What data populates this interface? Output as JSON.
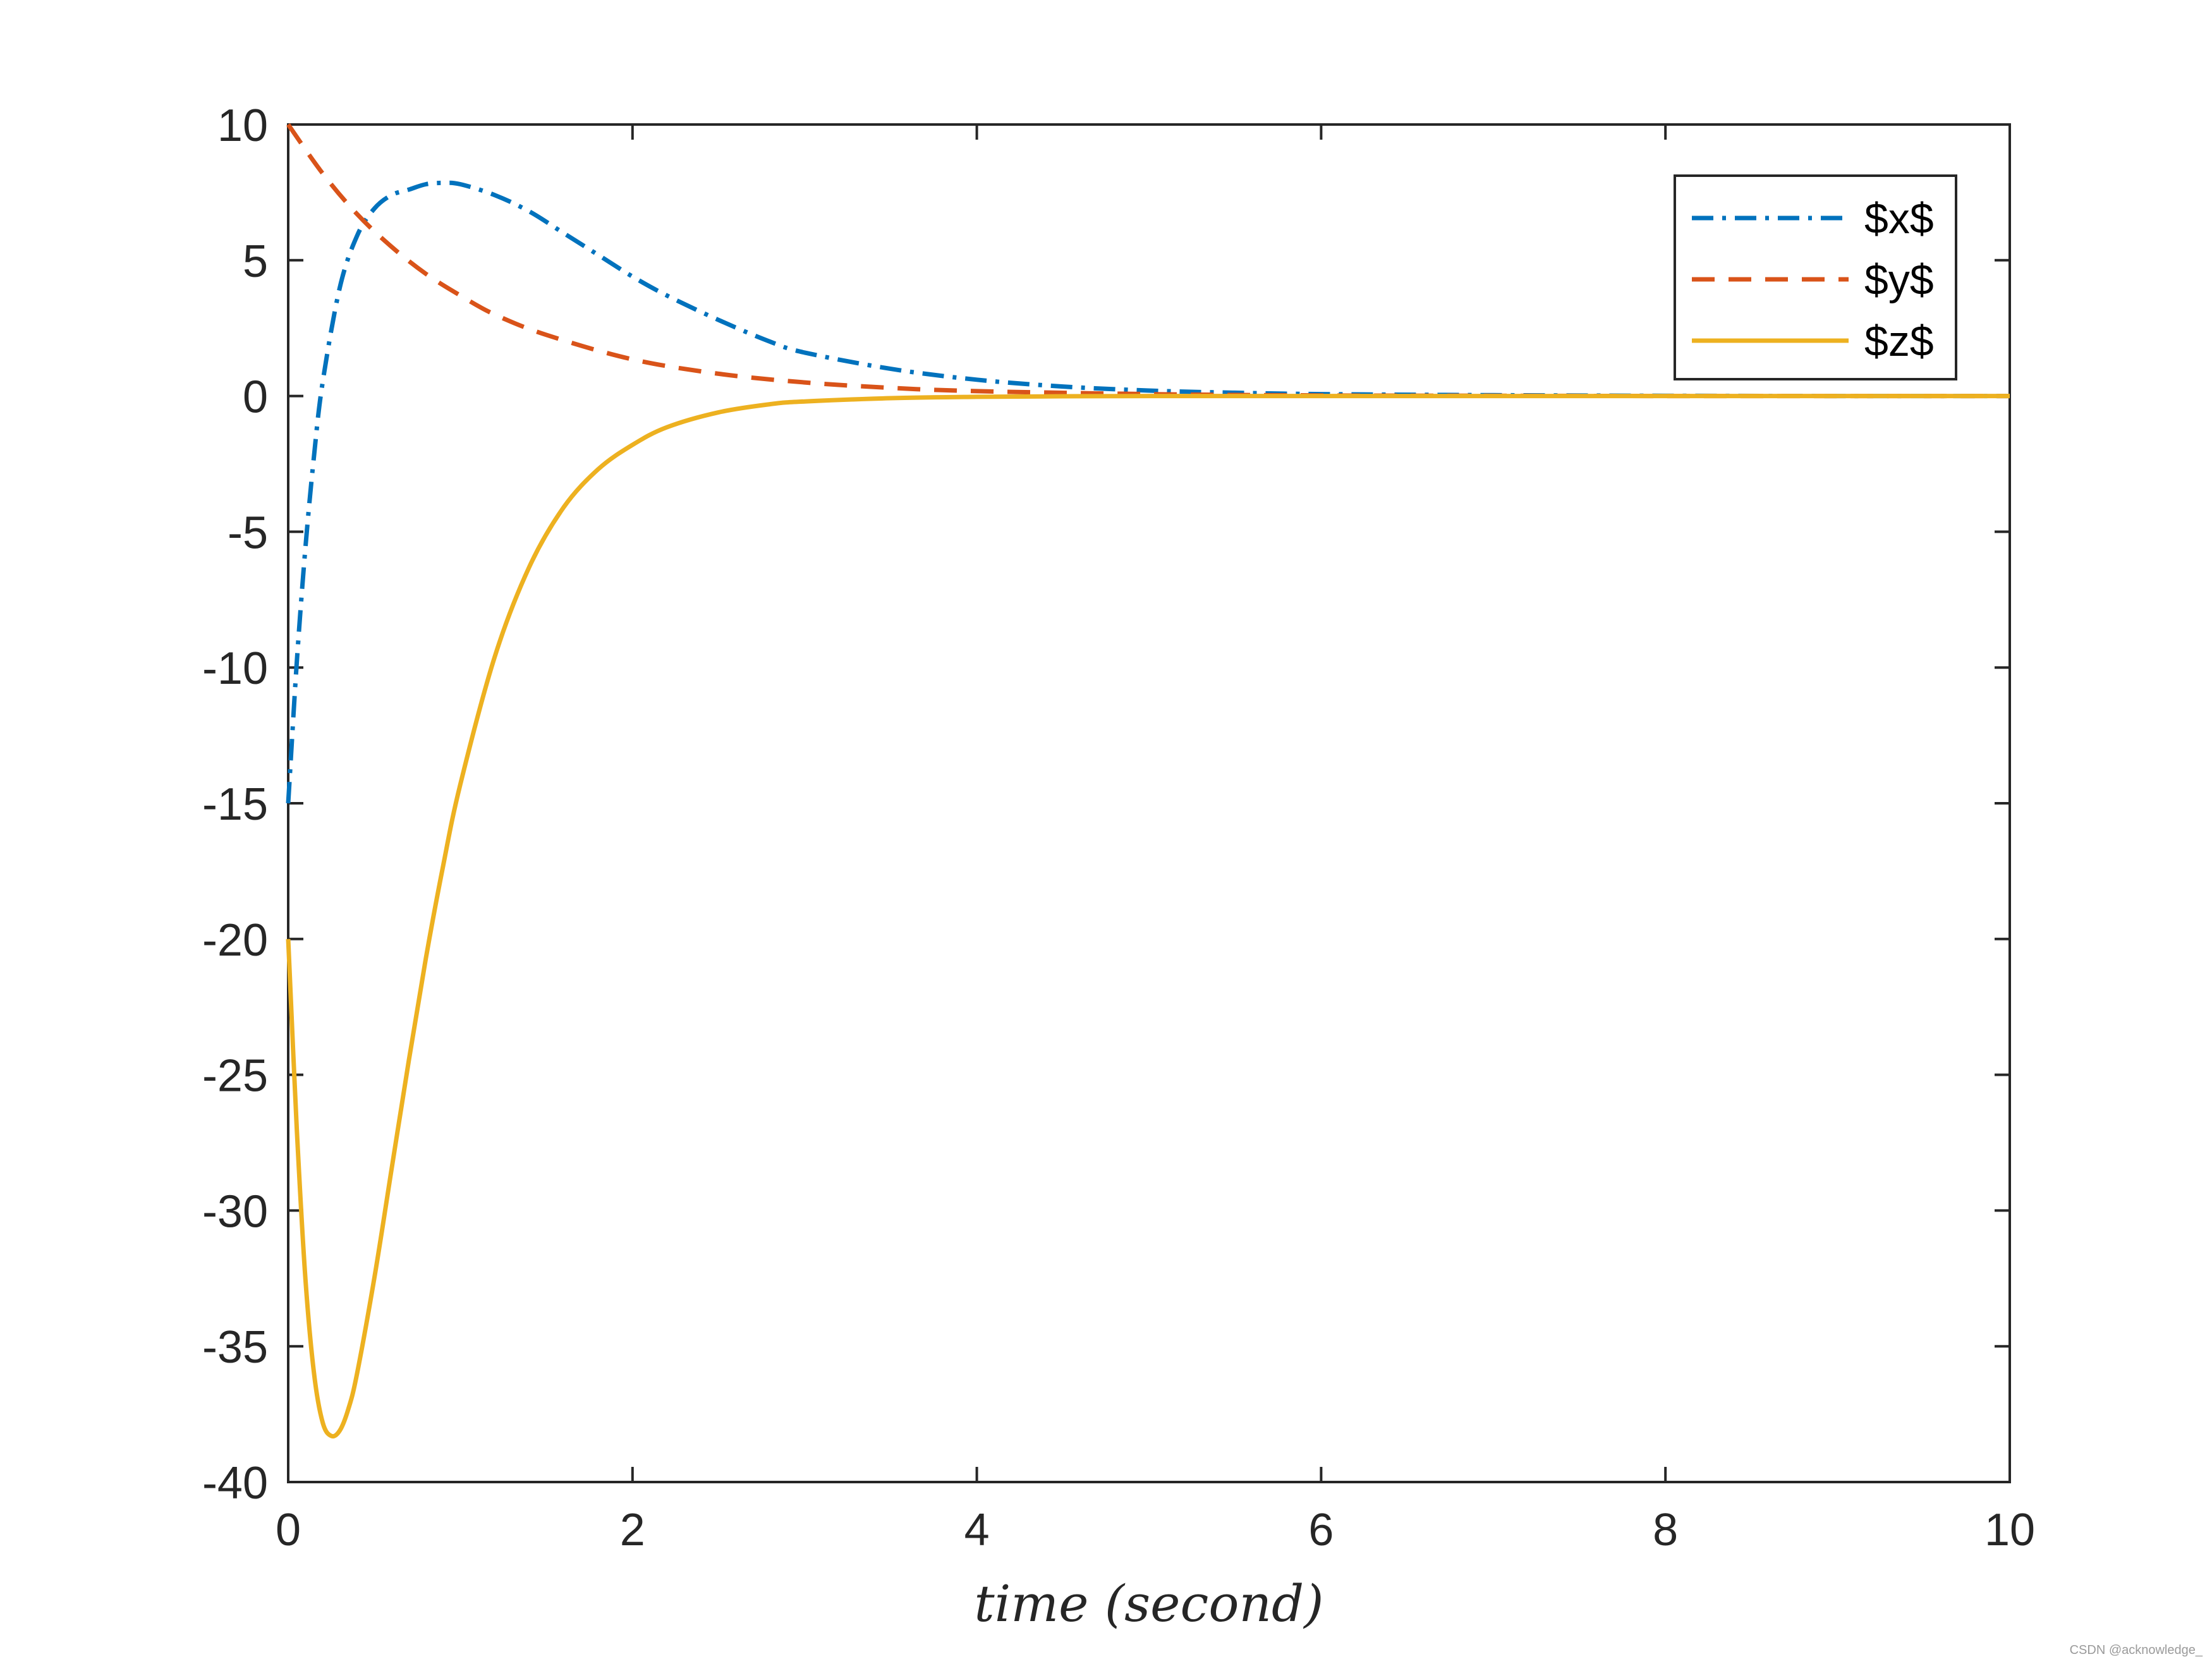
{
  "chart_data": {
    "type": "line",
    "title": "",
    "xlabel": "time (second)",
    "ylabel": "",
    "xlim": [
      0,
      10
    ],
    "ylim": [
      -40,
      10
    ],
    "xticks": [
      0,
      2,
      4,
      6,
      8,
      10
    ],
    "yticks": [
      10,
      5,
      0,
      -5,
      -10,
      -15,
      -20,
      -25,
      -30,
      -35,
      -40
    ],
    "xtick_labels": [
      "0",
      "2",
      "4",
      "6",
      "8",
      "10"
    ],
    "ytick_labels": [
      "10",
      "5",
      "0",
      "-5",
      "-10",
      "-15",
      "-20",
      "-25",
      "-30",
      "-35",
      "-40"
    ],
    "grid": false,
    "legend_position": "top-right",
    "series": [
      {
        "name": "$x$",
        "color": "#0072bd",
        "style": "dash-dot",
        "x": [
          0,
          0.05,
          0.1,
          0.15,
          0.2,
          0.3,
          0.4,
          0.5,
          0.6,
          0.7,
          0.8,
          0.9,
          1.0,
          1.2,
          1.4,
          1.6,
          1.8,
          2.0,
          2.2,
          2.5,
          2.8,
          3.0,
          3.5,
          4.0,
          4.5,
          5.0,
          5.5,
          6.0,
          7.0,
          8.0,
          9.0,
          10.0
        ],
        "y": [
          -15,
          -9.8,
          -5.6,
          -2.2,
          0.5,
          4.0,
          5.9,
          6.9,
          7.4,
          7.6,
          7.8,
          7.85,
          7.8,
          7.4,
          6.8,
          6.0,
          5.2,
          4.4,
          3.7,
          2.8,
          2.0,
          1.6,
          1.0,
          0.6,
          0.35,
          0.2,
          0.12,
          0.07,
          0.03,
          0.01,
          0.0,
          0.0
        ]
      },
      {
        "name": "$y$",
        "color": "#d95319",
        "style": "dashed",
        "x": [
          0,
          0.2,
          0.4,
          0.6,
          0.8,
          1.0,
          1.2,
          1.5,
          2.0,
          2.5,
          3.0,
          3.5,
          4.0,
          5.0,
          6.0,
          7.0,
          8.0,
          10.0
        ],
        "y": [
          10,
          8.2,
          6.7,
          5.5,
          4.5,
          3.7,
          3.0,
          2.25,
          1.35,
          0.82,
          0.5,
          0.3,
          0.18,
          0.07,
          0.02,
          0.01,
          0.0,
          0.0
        ]
      },
      {
        "name": "$z$",
        "color": "#edb120",
        "style": "solid",
        "x": [
          0,
          0.05,
          0.1,
          0.15,
          0.2,
          0.25,
          0.3,
          0.35,
          0.4,
          0.5,
          0.6,
          0.7,
          0.8,
          0.9,
          1.0,
          1.2,
          1.4,
          1.6,
          1.8,
          2.0,
          2.2,
          2.5,
          2.8,
          3.0,
          3.5,
          4.0,
          4.5,
          5.0,
          6.0,
          8.0,
          10.0
        ],
        "y": [
          -20,
          -27,
          -32.5,
          -36,
          -37.8,
          -38.3,
          -38.1,
          -37.3,
          -36,
          -32.5,
          -28.5,
          -24.5,
          -20.7,
          -17.3,
          -14.3,
          -9.6,
          -6.3,
          -4.1,
          -2.7,
          -1.8,
          -1.15,
          -0.6,
          -0.3,
          -0.2,
          -0.08,
          -0.03,
          -0.01,
          0.0,
          0.0,
          0.0,
          0.0
        ]
      }
    ]
  },
  "watermark": "CSDN @acknowledge_"
}
